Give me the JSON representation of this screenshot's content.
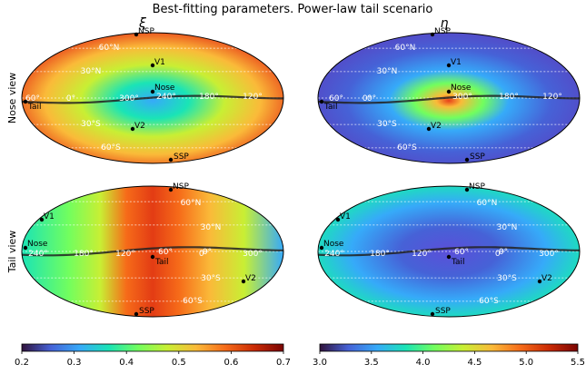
{
  "title": "Best-fitting parameters. Power-law tail scenario",
  "row_labels": [
    "Nose view",
    "Tail view"
  ],
  "panel_titles": [
    "ξ",
    "η"
  ],
  "colormap": [
    "#30123b",
    "#4662d7",
    "#36aaf9",
    "#1ae4b6",
    "#72fe5e",
    "#c8ef34",
    "#faba39",
    "#f66b19",
    "#ca2a04",
    "#7a0403"
  ],
  "chart_data": [
    {
      "type": "heatmap",
      "projection": "mollweide",
      "row": "Nose view",
      "parameter": "ξ",
      "center_longitude_deg": 300,
      "value_range": [
        0.2,
        0.7
      ],
      "dark_line": "galactic plane",
      "latitude_labels": [
        "60°N",
        "30°N",
        "0°",
        "30°S",
        "60°S"
      ],
      "longitude_labels": [
        "60°",
        "300°",
        "240°",
        "180°",
        "120°"
      ],
      "markers": [
        "NSP",
        "V1",
        "Nose",
        "V2",
        "SSP",
        "Tail"
      ]
    },
    {
      "type": "heatmap",
      "projection": "mollweide",
      "row": "Nose view",
      "parameter": "η",
      "center_longitude_deg": 300,
      "value_range": [
        3.0,
        5.5
      ],
      "dark_line": "galactic plane",
      "latitude_labels": [
        "60°N",
        "30°N",
        "0°",
        "30°S",
        "60°S"
      ],
      "longitude_labels": [
        "60°",
        "0°",
        "300°",
        "180°",
        "120°"
      ],
      "markers": [
        "NSP",
        "V1",
        "Nose",
        "V2",
        "SSP",
        "Tail"
      ]
    },
    {
      "type": "heatmap",
      "projection": "mollweide",
      "row": "Tail view",
      "parameter": "ξ",
      "center_longitude_deg": 120,
      "value_range": [
        0.2,
        0.7
      ],
      "dark_line": "galactic plane",
      "latitude_labels": [
        "60°N",
        "30°N",
        "0°",
        "30°S",
        "60°S"
      ],
      "longitude_labels": [
        "240°",
        "180°",
        "120°",
        "60°",
        "0°",
        "300°"
      ],
      "markers": [
        "NSP",
        "V1",
        "Nose",
        "Tail",
        "V2",
        "SSP"
      ]
    },
    {
      "type": "heatmap",
      "projection": "mollweide",
      "row": "Tail view",
      "parameter": "η",
      "center_longitude_deg": 120,
      "value_range": [
        3.0,
        5.5
      ],
      "dark_line": "galactic plane",
      "latitude_labels": [
        "60°N",
        "30°N",
        "0°",
        "30°S",
        "60°S"
      ],
      "longitude_labels": [
        "240°",
        "180°",
        "120°",
        "60°",
        "0°",
        "300°"
      ],
      "markers": [
        "NSP",
        "V1",
        "Nose",
        "Tail",
        "V2",
        "SSP"
      ]
    }
  ],
  "colorbars": [
    {
      "parameter": "ξ",
      "range": [
        0.2,
        0.7
      ],
      "ticks": [
        "0.2",
        "0.3",
        "0.4",
        "0.5",
        "0.6",
        "0.7"
      ]
    },
    {
      "parameter": "η",
      "range": [
        3.0,
        5.5
      ],
      "ticks": [
        "3.0",
        "3.5",
        "4.0",
        "4.5",
        "5.0",
        "5.5"
      ]
    }
  ]
}
